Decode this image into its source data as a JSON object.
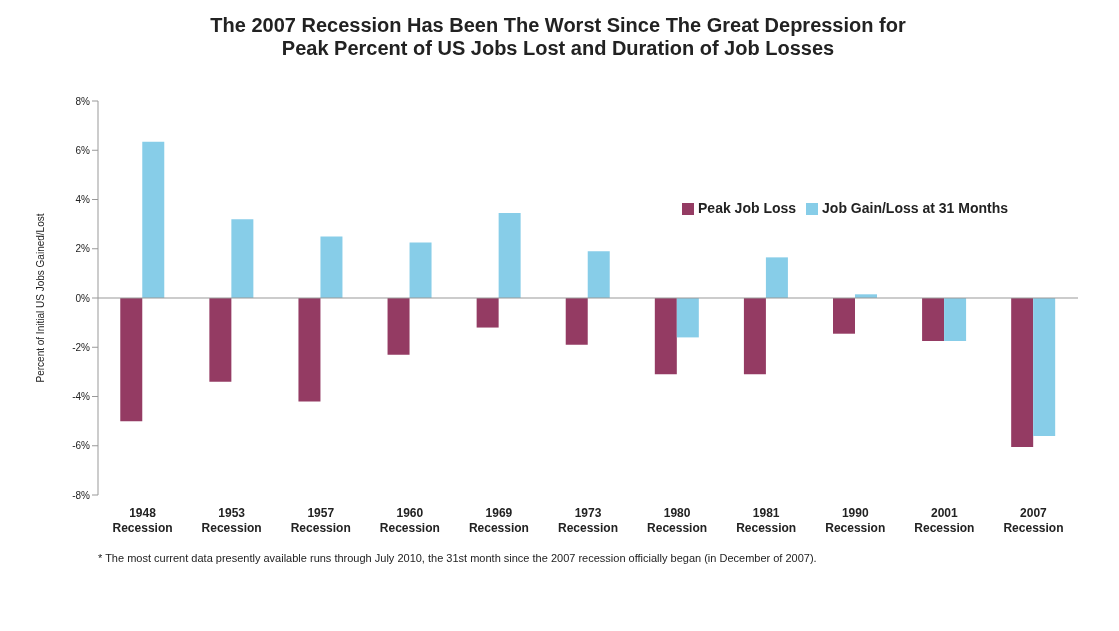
{
  "chart_data": {
    "type": "bar",
    "title": "The 2007 Recession Has Been The Worst Since The Great Depression for\nPeak Percent of US Jobs Lost and Duration of Job Losses",
    "ylabel": "Percent of Initial US Jobs Gained/Lost",
    "categories": [
      "1948 Recession",
      "1953 Recession",
      "1957 Recession",
      "1960 Recession",
      "1969 Recession",
      "1973 Recession",
      "1980 Recession",
      "1981 Recession",
      "1990 Recession",
      "2001 Recession",
      "2007 Recession"
    ],
    "series": [
      {
        "name": "Peak Job Loss",
        "color": "#943b63",
        "values": [
          -5.0,
          -3.4,
          -4.2,
          -2.3,
          -1.2,
          -1.9,
          -3.1,
          -3.1,
          -1.45,
          -1.75,
          -6.05
        ]
      },
      {
        "name": "Job Gain/Loss at 31 Months",
        "color": "#87cde8",
        "values": [
          6.35,
          3.2,
          2.5,
          2.25,
          3.45,
          1.9,
          -1.6,
          1.65,
          0.15,
          -1.75,
          -5.6
        ]
      }
    ],
    "ylim": [
      -8,
      8
    ],
    "yticks": [
      {
        "value": -8,
        "label": "-8%"
      },
      {
        "value": -6,
        "label": "-6%"
      },
      {
        "value": -4,
        "label": "-4%"
      },
      {
        "value": -2,
        "label": "-2%"
      },
      {
        "value": 0,
        "label": "0%"
      },
      {
        "value": 2,
        "label": "2%"
      },
      {
        "value": 4,
        "label": "4%"
      },
      {
        "value": 6,
        "label": "6%"
      },
      {
        "value": 8,
        "label": "8%"
      }
    ],
    "grid": false,
    "legend": "top right",
    "ref_lines": [
      {
        "axis": "y",
        "value": 0,
        "color": "#999999"
      }
    ],
    "annotations": [
      "* The most current data presently available runs through July  2010, the 31st month since the 2007 recession officially began (in December of 2007)."
    ]
  }
}
